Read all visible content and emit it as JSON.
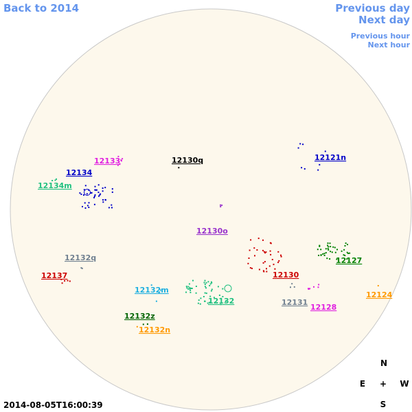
{
  "navigation": {
    "back": "Back to 2014",
    "previous_day": "Previous day",
    "next_day": "Next day",
    "previous_hour": "Previous hour",
    "next_hour": "Next hour"
  },
  "timestamp": "2014-08-05T16:00:39",
  "compass": {
    "north": "N",
    "east": "E",
    "center": "+",
    "west": "W",
    "south": "S"
  },
  "regions": [
    {
      "label": "12133",
      "color": "#e020e0"
    },
    {
      "label": "12130q",
      "color": "#000000"
    },
    {
      "label": "12134",
      "color": "#0000c8"
    },
    {
      "label": "12134m",
      "color": "#20c080"
    },
    {
      "label": "12121n",
      "color": "#0000c8"
    },
    {
      "label": "12130o",
      "color": "#9933cc"
    },
    {
      "label": "12132q",
      "color": "#708090"
    },
    {
      "label": "12137",
      "color": "#cc0000"
    },
    {
      "label": "12130",
      "color": "#cc0000"
    },
    {
      "label": "12127",
      "color": "#008000"
    },
    {
      "label": "12132m",
      "color": "#20b0e0"
    },
    {
      "label": "12132",
      "color": "#20c080"
    },
    {
      "label": "12131",
      "color": "#708090"
    },
    {
      "label": "12128",
      "color": "#e020e0"
    },
    {
      "label": "12124",
      "color": "#ff9900"
    },
    {
      "label": "12132z",
      "color": "#006400"
    },
    {
      "label": "12132n",
      "color": "#ff9900"
    }
  ]
}
